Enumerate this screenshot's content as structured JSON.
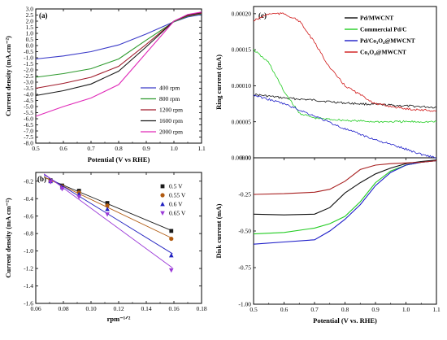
{
  "chart_data": [
    {
      "id": "a",
      "type": "line",
      "panel_label": "(a)",
      "xlabel": "Potential (V vs RHE)",
      "ylabel": "Current density (mA.cm⁻²)",
      "xlim": [
        0.5,
        1.1
      ],
      "ylim": [
        -8.0,
        3.0
      ],
      "xticks": [
        "0.5",
        "0.6",
        "0.7",
        "0.8",
        "0.9",
        "1.0",
        "1.1"
      ],
      "yticks": [
        "3.0",
        "2.5",
        "2.0",
        "1.5",
        "1.0",
        "0.5",
        "0.0",
        "-0.5",
        "-1.0",
        "-1.5",
        "-2.0",
        "-2.5",
        "-3.0",
        "-3.5",
        "-4.0",
        "-4.5",
        "-5.0",
        "-5.5",
        "-6.0",
        "-6.5",
        "-7.0",
        "-7.5",
        "-8.0"
      ],
      "legend_position": "bottom-right",
      "series": [
        {
          "name": "400 rpm",
          "color": "#3a3ac8",
          "x": [
            0.5,
            0.6,
            0.7,
            0.8,
            0.9,
            1.0,
            1.05,
            1.1
          ],
          "y": [
            -1.1,
            -0.85,
            -0.5,
            0.05,
            0.95,
            1.95,
            2.35,
            2.55
          ]
        },
        {
          "name": "800 rpm",
          "color": "#2e9a2e",
          "x": [
            0.5,
            0.6,
            0.7,
            0.8,
            0.9,
            1.0,
            1.05,
            1.1
          ],
          "y": [
            -2.6,
            -2.3,
            -1.9,
            -1.1,
            0.45,
            1.95,
            2.4,
            2.6
          ]
        },
        {
          "name": "1200 rpm",
          "color": "#a01a2a",
          "x": [
            0.5,
            0.6,
            0.7,
            0.8,
            0.9,
            1.0,
            1.05,
            1.1
          ],
          "y": [
            -3.5,
            -3.1,
            -2.6,
            -1.7,
            0.1,
            2.0,
            2.45,
            2.65
          ]
        },
        {
          "name": "1600 rpm",
          "color": "#1a1a1a",
          "x": [
            0.5,
            0.6,
            0.7,
            0.8,
            0.9,
            1.0,
            1.05,
            1.1
          ],
          "y": [
            -4.1,
            -3.7,
            -3.15,
            -2.1,
            -0.1,
            2.0,
            2.5,
            2.7
          ]
        },
        {
          "name": "2000 rpm",
          "color": "#e02ab8",
          "x": [
            0.5,
            0.6,
            0.7,
            0.8,
            0.9,
            1.0,
            1.05,
            1.1
          ],
          "y": [
            -5.8,
            -5.0,
            -4.3,
            -3.2,
            -0.6,
            2.0,
            2.55,
            2.75
          ]
        }
      ]
    },
    {
      "id": "b",
      "type": "scatter",
      "panel_label": "(b)",
      "xlabel": "rpm⁻¹ᐟ²",
      "ylabel": "Current density (mA cm⁻²)",
      "xlim": [
        0.06,
        0.18
      ],
      "ylim": [
        -1.6,
        -0.1
      ],
      "xticks": [
        "0.06",
        "0.08",
        "0.10",
        "0.12",
        "0.14",
        "0.16",
        "0.18"
      ],
      "yticks": [
        "-0.2",
        "-0.4",
        "-0.6",
        "-0.8",
        "-1.0",
        "-1.2",
        "-1.4",
        "-1.6"
      ],
      "legend_position": "top-right",
      "fit_lines": true,
      "series": [
        {
          "name": "0.5 V",
          "marker": "square",
          "color": "#1a1a1a",
          "x": [
            0.0707,
            0.0791,
            0.0913,
            0.1118,
            0.1581
          ],
          "y": [
            -0.19,
            -0.25,
            -0.31,
            -0.45,
            -0.77
          ]
        },
        {
          "name": "0.55 V",
          "marker": "circle",
          "color": "#b05a10",
          "x": [
            0.0707,
            0.0791,
            0.0913,
            0.1118,
            0.1581
          ],
          "y": [
            -0.2,
            -0.26,
            -0.33,
            -0.48,
            -0.86
          ]
        },
        {
          "name": "0.6 V",
          "marker": "triangle-up",
          "color": "#2020c0",
          "x": [
            0.0707,
            0.0791,
            0.0913,
            0.1118,
            0.1581
          ],
          "y": [
            -0.2,
            -0.27,
            -0.35,
            -0.52,
            -1.05
          ]
        },
        {
          "name": "0.65 V",
          "marker": "triangle-down",
          "color": "#9b3ad8",
          "x": [
            0.0707,
            0.0791,
            0.0913,
            0.1118,
            0.1581
          ],
          "y": [
            -0.21,
            -0.29,
            -0.38,
            -0.58,
            -1.22
          ]
        }
      ]
    },
    {
      "id": "c_ring",
      "type": "line",
      "panel_label": "(c)",
      "xlabel": "",
      "ylabel": "Ring current (mA)",
      "xlim": [
        0.5,
        1.1
      ],
      "ylim": [
        0.0,
        0.00021
      ],
      "yticks": [
        "0.00020",
        "0.00015",
        "0.00010",
        "0.00005",
        "0.00000"
      ],
      "legend_position": "top-right",
      "series": [
        {
          "name": "Pd/MWCNT",
          "color": "#111111",
          "x": [
            0.5,
            0.6,
            0.7,
            0.8,
            0.9,
            1.0,
            1.1
          ],
          "y": [
            8.8e-05,
            8.3e-05,
            8e-05,
            7.6e-05,
            7.4e-05,
            7.2e-05,
            7e-05
          ]
        },
        {
          "name": "Commercial Pd/C",
          "color": "#22cc22",
          "x": [
            0.5,
            0.55,
            0.6,
            0.65,
            0.7,
            0.8,
            0.9,
            1.0,
            1.1
          ],
          "y": [
            0.00015,
            0.000132,
            9.2e-05,
            6.2e-05,
            5.5e-05,
            5.2e-05,
            5e-05,
            5e-05,
            5e-05
          ]
        },
        {
          "name": "Pd/Co₃O₄@MWCNT",
          "color": "#1c1cc8",
          "x": [
            0.5,
            0.6,
            0.7,
            0.8,
            0.9,
            1.0,
            1.05,
            1.1
          ],
          "y": [
            8.7e-05,
            7.5e-05,
            5.8e-05,
            4e-05,
            2.5e-05,
            1.2e-05,
            5e-06,
            0.0
          ]
        },
        {
          "name": "Co₃O₄@MWCNT",
          "color": "#d01818",
          "x": [
            0.5,
            0.55,
            0.6,
            0.65,
            0.7,
            0.75,
            0.8,
            0.9,
            1.0,
            1.1
          ],
          "y": [
            0.00019,
            0.0002,
            0.0002,
            0.00019,
            0.00016,
            0.000125,
            0.0001,
            7.5e-05,
            6.8e-05,
            6.5e-05
          ]
        }
      ]
    },
    {
      "id": "c_disk",
      "type": "line",
      "panel_label": "",
      "xlabel": "Potential (V vs. RHE)",
      "ylabel": "Disk current (mA)",
      "xlim": [
        0.5,
        1.1
      ],
      "ylim": [
        -1.0,
        0.0
      ],
      "xticks": [
        "0.5",
        "0.6",
        "0.7",
        "0.8",
        "0.9",
        "1.0",
        "1.1"
      ],
      "yticks": [
        "0.00",
        "-0.25",
        "-0.50",
        "-0.75",
        "-1.00"
      ],
      "legend_position": "top-right",
      "series": [
        {
          "name": "Pd/MWCNT",
          "color": "#111111",
          "x": [
            0.5,
            0.6,
            0.7,
            0.75,
            0.8,
            0.85,
            0.9,
            0.95,
            1.0,
            1.05,
            1.1
          ],
          "y": [
            -0.385,
            -0.39,
            -0.385,
            -0.34,
            -0.24,
            -0.17,
            -0.11,
            -0.07,
            -0.04,
            -0.025,
            -0.015
          ]
        },
        {
          "name": "Commercial Pd/C",
          "color": "#22cc22",
          "x": [
            0.5,
            0.6,
            0.7,
            0.75,
            0.8,
            0.85,
            0.9,
            0.95,
            1.0,
            1.05,
            1.1
          ],
          "y": [
            -0.52,
            -0.51,
            -0.48,
            -0.45,
            -0.4,
            -0.3,
            -0.17,
            -0.09,
            -0.05,
            -0.03,
            -0.02
          ]
        },
        {
          "name": "Pd/Co₃O₄@MWCNT",
          "color": "#1c1cc8",
          "x": [
            0.5,
            0.6,
            0.7,
            0.75,
            0.8,
            0.85,
            0.9,
            0.95,
            1.0,
            1.05,
            1.1
          ],
          "y": [
            -0.59,
            -0.575,
            -0.56,
            -0.5,
            -0.42,
            -0.32,
            -0.19,
            -0.1,
            -0.05,
            -0.03,
            -0.02
          ]
        },
        {
          "name": "Co₃O₄@MWCNT",
          "color": "#a82020",
          "x": [
            0.5,
            0.6,
            0.7,
            0.75,
            0.8,
            0.85,
            0.9,
            0.95,
            1.0,
            1.05,
            1.1
          ],
          "y": [
            -0.25,
            -0.245,
            -0.235,
            -0.215,
            -0.16,
            -0.08,
            -0.05,
            -0.04,
            -0.035,
            -0.03,
            -0.02
          ]
        }
      ]
    }
  ]
}
